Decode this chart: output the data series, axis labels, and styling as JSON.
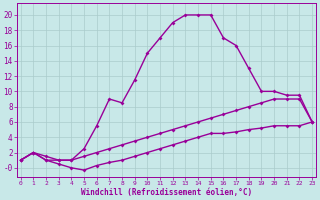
{
  "xlabel": "Windchill (Refroidissement éolien,°C)",
  "background_color": "#c8e8e8",
  "line_color": "#990099",
  "grid_color": "#aacccc",
  "x_ticks": [
    0,
    1,
    2,
    3,
    4,
    5,
    6,
    7,
    8,
    9,
    10,
    11,
    12,
    13,
    14,
    15,
    16,
    17,
    18,
    19,
    20,
    21,
    22,
    23
  ],
  "y_ticks": [
    0,
    2,
    4,
    6,
    8,
    10,
    12,
    14,
    16,
    18,
    20
  ],
  "ylim": [
    -1.2,
    21.5
  ],
  "xlim": [
    -0.3,
    23.3
  ],
  "series": [
    {
      "x": [
        0,
        1,
        2,
        3,
        4,
        5,
        6,
        7,
        8,
        9,
        10,
        11,
        12,
        13,
        14,
        15,
        16,
        17,
        18,
        19,
        20,
        21,
        22,
        23
      ],
      "y": [
        1,
        2,
        1.5,
        1,
        1,
        2.5,
        5.5,
        9,
        8.5,
        11.5,
        15,
        17,
        19,
        20,
        20,
        20,
        17,
        16,
        13,
        10,
        10,
        9.5,
        9.5,
        6
      ],
      "marker": "D",
      "markersize": 2,
      "linewidth": 1.0
    },
    {
      "x": [
        0,
        1,
        2,
        3,
        4,
        5,
        6,
        7,
        8,
        9,
        10,
        11,
        12,
        13,
        14,
        15,
        16,
        17,
        18,
        19,
        20,
        21,
        22,
        23
      ],
      "y": [
        1,
        2,
        1,
        1,
        1,
        1.5,
        2,
        2.5,
        3,
        3.5,
        4,
        4.5,
        5,
        5.5,
        6,
        6.5,
        7,
        7.5,
        8,
        8.5,
        9,
        9,
        9,
        6
      ],
      "marker": "D",
      "markersize": 2,
      "linewidth": 1.0
    },
    {
      "x": [
        0,
        1,
        2,
        3,
        4,
        5,
        6,
        7,
        8,
        9,
        10,
        11,
        12,
        13,
        14,
        15,
        16,
        17,
        18,
        19,
        20,
        21,
        22,
        23
      ],
      "y": [
        1,
        2,
        1,
        0.5,
        0,
        -0.3,
        0.3,
        0.7,
        1.0,
        1.5,
        2,
        2.5,
        3,
        3.5,
        4,
        4.5,
        4.5,
        4.7,
        5,
        5.2,
        5.5,
        5.5,
        5.5,
        6
      ],
      "marker": "D",
      "markersize": 2,
      "linewidth": 1.0
    }
  ],
  "tick_fontsize_x": 4.5,
  "tick_fontsize_y": 5.5,
  "xlabel_fontsize": 5.5,
  "fig_width": 3.2,
  "fig_height": 2.0,
  "dpi": 100
}
